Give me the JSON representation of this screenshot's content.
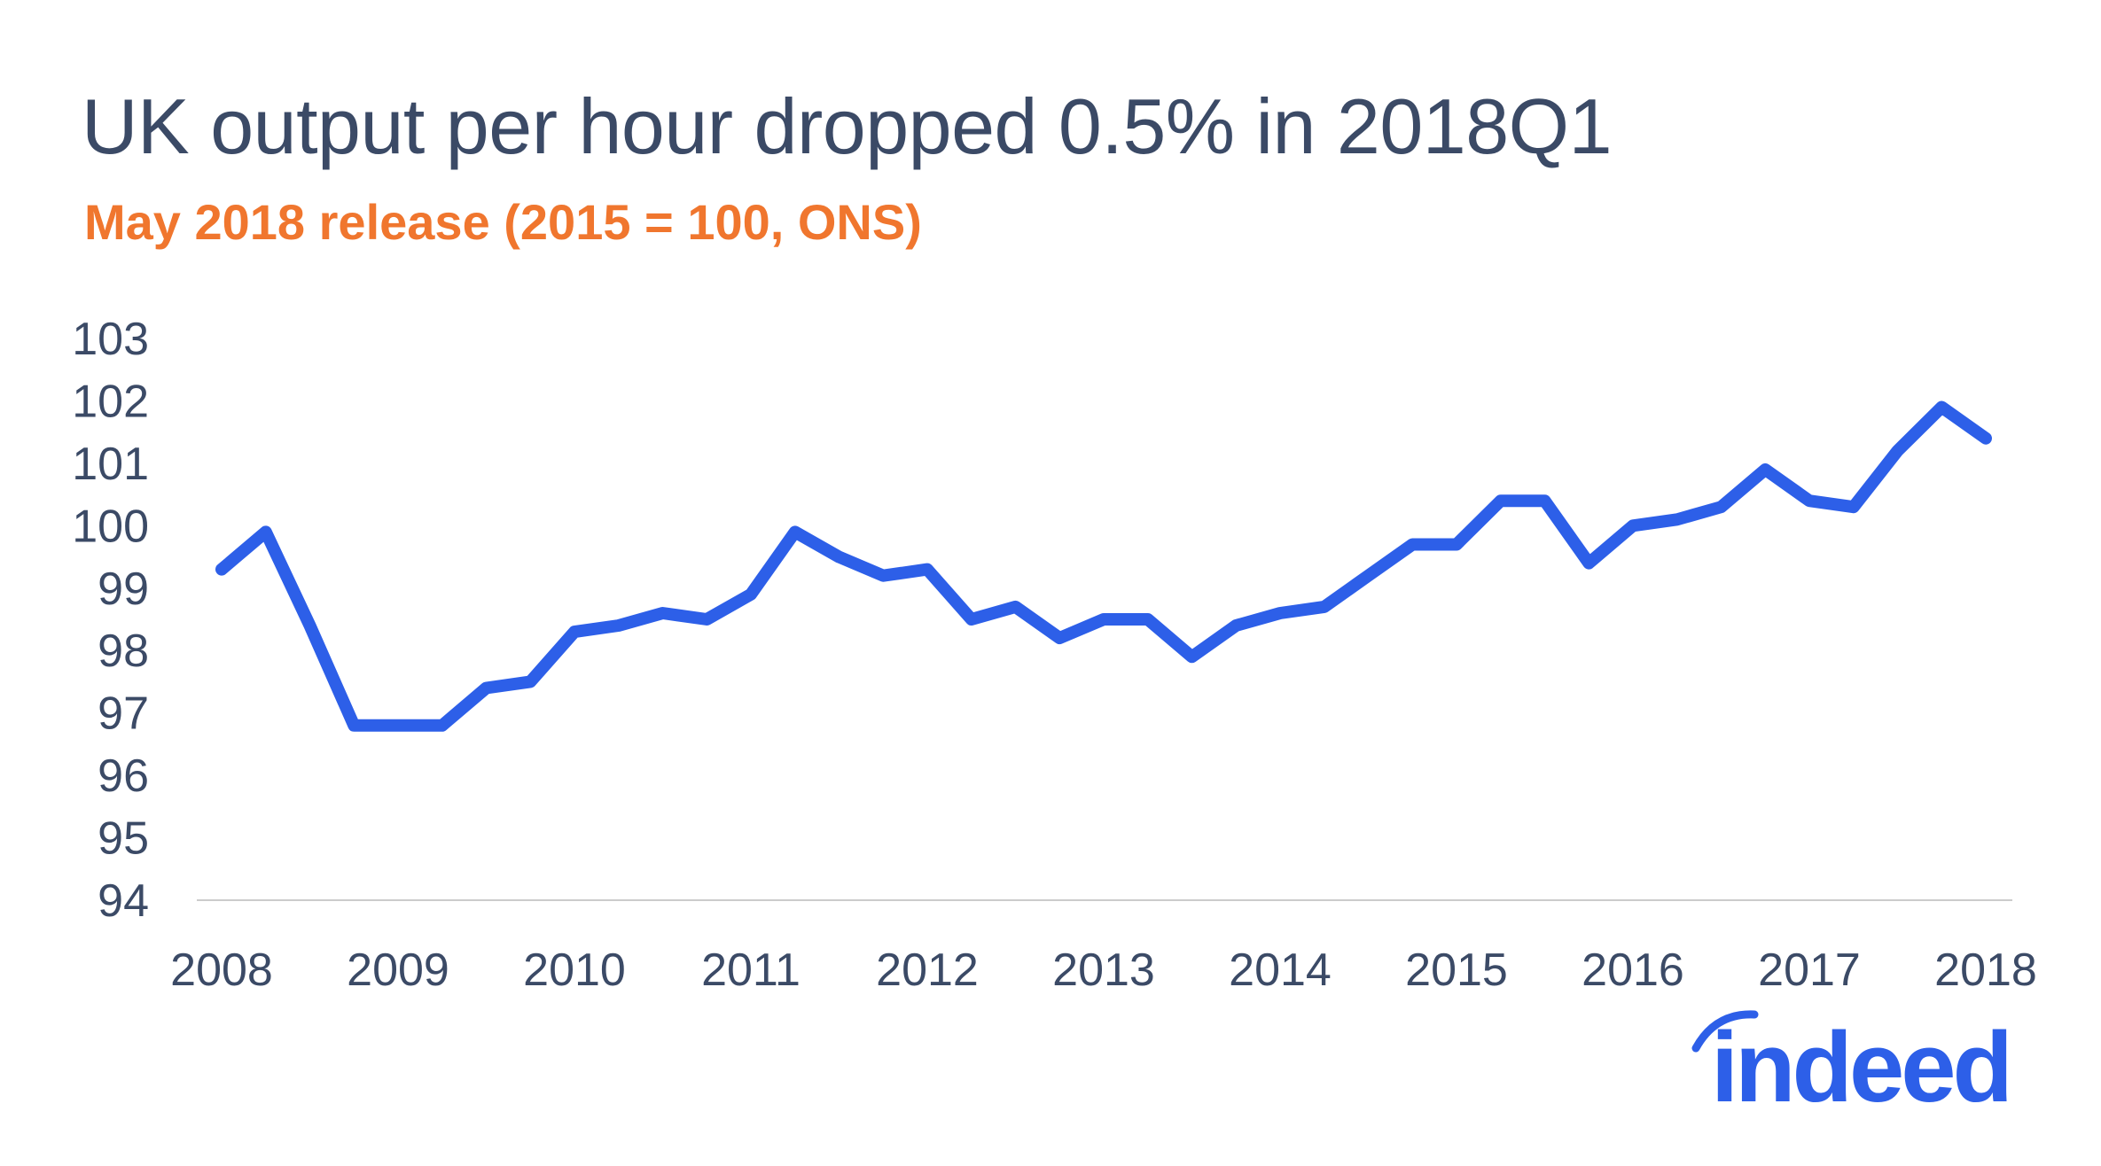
{
  "title": "UK output per hour dropped 0.5% in 2018Q1",
  "subtitle": "May 2018 release (2015 = 100, ONS)",
  "logo_text": "indeed",
  "colors": {
    "line": "#2d5fe8",
    "title": "#3b4a66",
    "subtitle": "#f0762e",
    "axis": "#cccccc",
    "logo": "#2d5fe8"
  },
  "chart_data": {
    "type": "line",
    "title": "UK output per hour dropped 0.5% in 2018Q1",
    "subtitle": "May 2018 release (2015 = 100, ONS)",
    "xlabel": "",
    "ylabel": "",
    "xlim": [
      2008,
      2018
    ],
    "ylim": [
      94,
      103
    ],
    "x_ticks": [
      "2008",
      "2009",
      "2010",
      "2011",
      "2012",
      "2013",
      "2014",
      "2015",
      "2016",
      "2017",
      "2018"
    ],
    "y_ticks": [
      "94",
      "95",
      "96",
      "97",
      "98",
      "99",
      "100",
      "101",
      "102",
      "103"
    ],
    "grid": false,
    "series": [
      {
        "x": [
          "2008Q1",
          "2008Q2",
          "2008Q3",
          "2008Q4",
          "2009Q1",
          "2009Q2",
          "2009Q3",
          "2009Q4",
          "2010Q1",
          "2010Q2",
          "2010Q3",
          "2010Q4",
          "2011Q1",
          "2011Q2",
          "2011Q3",
          "2011Q4",
          "2012Q1",
          "2012Q2",
          "2012Q3",
          "2012Q4",
          "2013Q1",
          "2013Q2",
          "2013Q3",
          "2013Q4",
          "2014Q1",
          "2014Q2",
          "2014Q3",
          "2014Q4",
          "2015Q1",
          "2015Q2",
          "2015Q3",
          "2015Q4",
          "2016Q1",
          "2016Q2",
          "2016Q3",
          "2016Q4",
          "2017Q1",
          "2017Q2",
          "2017Q3",
          "2017Q4",
          "2018Q1"
        ],
        "values": [
          99.3,
          99.9,
          98.4,
          96.8,
          96.8,
          96.8,
          97.4,
          97.5,
          98.3,
          98.4,
          98.6,
          98.5,
          98.9,
          99.9,
          99.5,
          99.2,
          99.3,
          98.5,
          98.7,
          98.2,
          98.5,
          98.5,
          97.9,
          98.4,
          98.6,
          98.7,
          99.2,
          99.7,
          99.7,
          100.4,
          100.4,
          99.4,
          100.0,
          100.1,
          100.3,
          100.9,
          100.4,
          100.3,
          101.2,
          101.9,
          101.4
        ]
      }
    ]
  }
}
